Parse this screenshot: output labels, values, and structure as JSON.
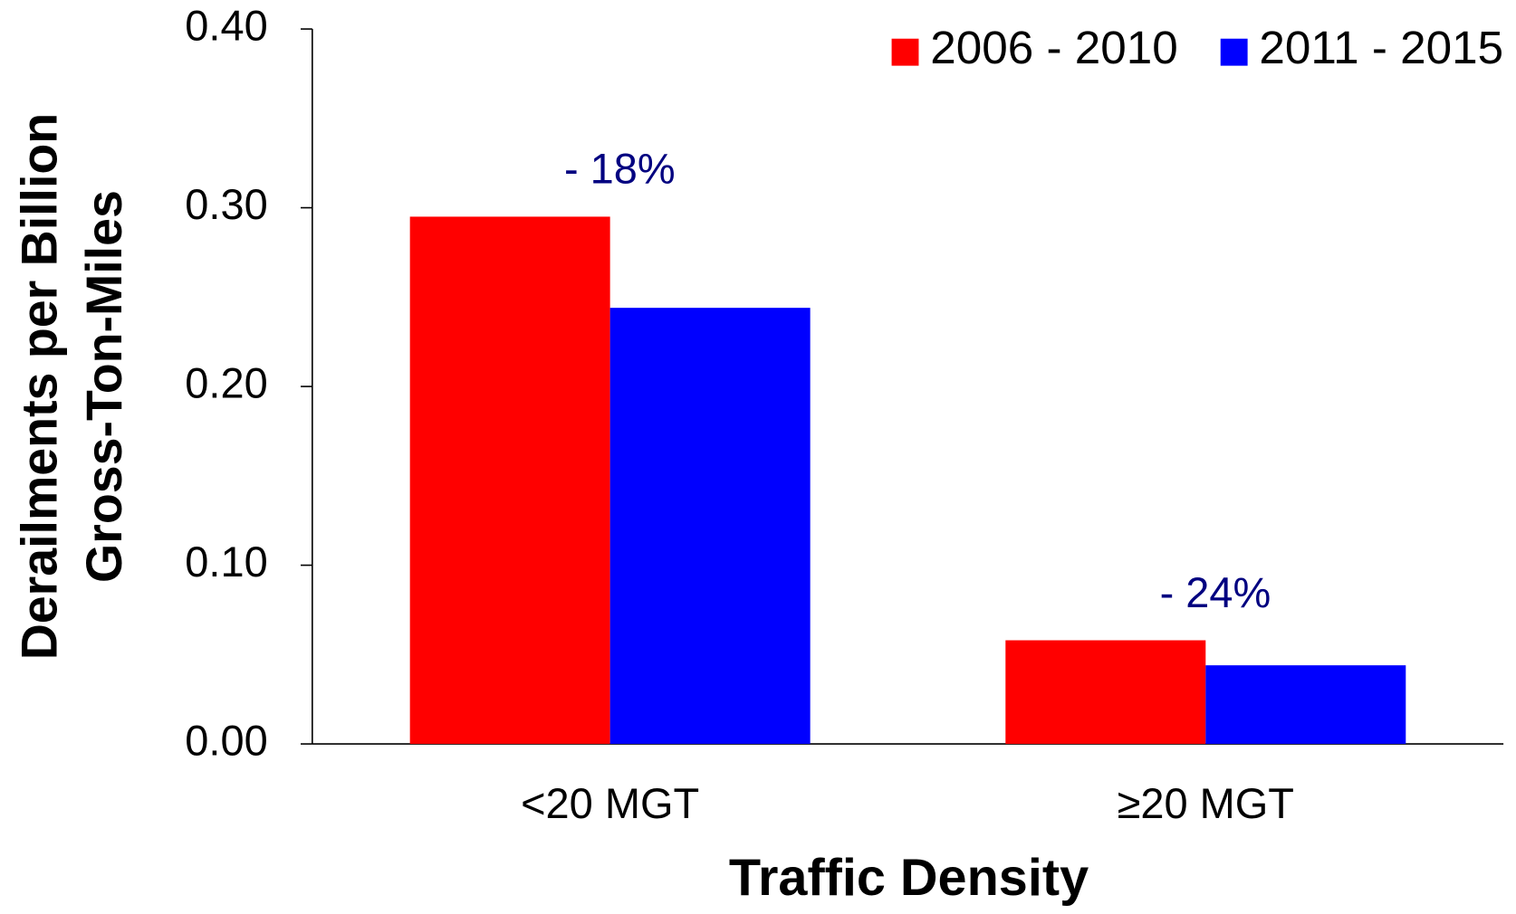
{
  "chart_data": {
    "type": "bar",
    "y_label": [
      "Derailments per Billion",
      "Gross-Ton-Miles"
    ],
    "x_label": "Traffic Density",
    "categories": [
      "<20 MGT",
      "≥20 MGT"
    ],
    "series": [
      {
        "name": "2006 - 2010",
        "color": "#ff0000",
        "values": [
          0.295,
          0.058
        ]
      },
      {
        "name": "2011 - 2015",
        "color": "#0000ff",
        "values": [
          0.244,
          0.044
        ]
      }
    ],
    "annotations": [
      "- 18%",
      "- 24%"
    ],
    "annotation_color": "#000080",
    "ylim": [
      0,
      0.4
    ],
    "yticks": [
      {
        "value": 0,
        "label": "0.00"
      },
      {
        "value": 0.1,
        "label": "0.10"
      },
      {
        "value": 0.2,
        "label": "0.20"
      },
      {
        "value": 0.3,
        "label": "0.30"
      },
      {
        "value": 0.4,
        "label": "0.40"
      }
    ],
    "legend": "top-right"
  }
}
